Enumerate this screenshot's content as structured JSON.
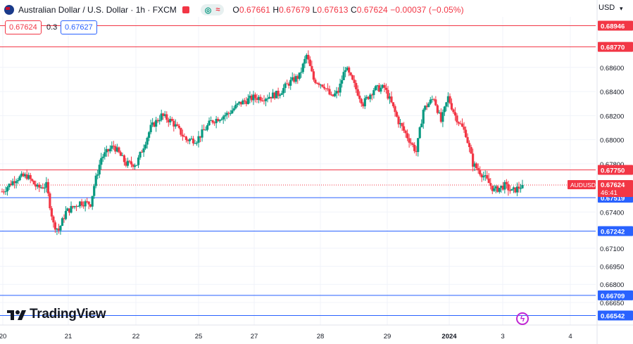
{
  "header": {
    "symbol_title": "Australian Dollar / U.S. Dollar · 1h · FXCM",
    "indicator_pill": {
      "left": "◎",
      "right": "≈"
    },
    "ohlc": {
      "open_label": "O",
      "open": "0.67661",
      "high_label": "H",
      "high": "0.67679",
      "low_label": "L",
      "low": "0.67613",
      "close_label": "C",
      "close": "0.67624",
      "change": "−0.00037 (−0.05%)"
    },
    "sell_price": "0.67624",
    "spread": "0.3",
    "buy_price": "0.67627",
    "currency": "USD"
  },
  "branding": {
    "logo_text": "TradingView"
  },
  "colors": {
    "up": "#089981",
    "down": "#f23645",
    "resistance": "#f23645",
    "support": "#2962ff",
    "axis_text": "#131722",
    "grid": "#f0f3fa"
  },
  "chart_data": {
    "type": "candlestick",
    "title": "Australian Dollar / U.S. Dollar · 1h · FXCM",
    "ylim": [
      0.6648,
      0.6903
    ],
    "y_ticks": [
      "0.68600",
      "0.68400",
      "0.68200",
      "0.68000",
      "0.67800",
      "0.67400",
      "0.67100",
      "0.66950",
      "0.66800",
      "0.66650"
    ],
    "x_ticks": [
      "20",
      "21",
      "22",
      "25",
      "27",
      "28",
      "29",
      "2024",
      "3",
      "4"
    ],
    "horizontal_levels": [
      {
        "value": 0.68946,
        "label": "0.68946",
        "kind": "resistance"
      },
      {
        "value": 0.6877,
        "label": "0.68770",
        "kind": "resistance"
      },
      {
        "value": 0.6775,
        "label": "0.67750",
        "kind": "resistance"
      },
      {
        "value": 0.67519,
        "label": "0.67519",
        "kind": "support"
      },
      {
        "value": 0.67242,
        "label": "0.67242",
        "kind": "support"
      },
      {
        "value": 0.66709,
        "label": "0.66709",
        "kind": "support"
      },
      {
        "value": 0.66542,
        "label": "0.66542",
        "kind": "support"
      }
    ],
    "last_price": {
      "symbol": "AUDUSD",
      "value": 0.67624,
      "label": "0.67624",
      "countdown": "46:41"
    },
    "path_keypoints": [
      [
        0,
        0.6757
      ],
      [
        8,
        0.6768
      ],
      [
        14,
        0.677
      ],
      [
        20,
        0.676
      ],
      [
        25,
        0.6762
      ],
      [
        29,
        0.673
      ],
      [
        32,
        0.6725
      ],
      [
        36,
        0.674
      ],
      [
        44,
        0.6748
      ],
      [
        50,
        0.6747
      ],
      [
        52,
        0.6762
      ],
      [
        56,
        0.6785
      ],
      [
        63,
        0.6795
      ],
      [
        70,
        0.678
      ],
      [
        76,
        0.678
      ],
      [
        84,
        0.681
      ],
      [
        90,
        0.682
      ],
      [
        96,
        0.6815
      ],
      [
        104,
        0.68
      ],
      [
        110,
        0.68
      ],
      [
        118,
        0.6815
      ],
      [
        128,
        0.6822
      ],
      [
        134,
        0.683
      ],
      [
        142,
        0.6835
      ],
      [
        148,
        0.6835
      ],
      [
        156,
        0.6838
      ],
      [
        162,
        0.6847
      ],
      [
        168,
        0.6853
      ],
      [
        172,
        0.687
      ],
      [
        176,
        0.685
      ],
      [
        182,
        0.6845
      ],
      [
        186,
        0.6835
      ],
      [
        190,
        0.684
      ],
      [
        194,
        0.686
      ],
      [
        198,
        0.6848
      ],
      [
        204,
        0.683
      ],
      [
        210,
        0.6842
      ],
      [
        216,
        0.6843
      ],
      [
        220,
        0.683
      ],
      [
        224,
        0.6815
      ],
      [
        230,
        0.68
      ],
      [
        234,
        0.679
      ],
      [
        238,
        0.6825
      ],
      [
        244,
        0.6835
      ],
      [
        248,
        0.6815
      ],
      [
        252,
        0.6835
      ],
      [
        256,
        0.682
      ],
      [
        262,
        0.6805
      ],
      [
        266,
        0.678
      ],
      [
        272,
        0.677
      ],
      [
        278,
        0.6758
      ],
      [
        284,
        0.6762
      ],
      [
        288,
        0.6757
      ],
      [
        294,
        0.6762
      ]
    ]
  }
}
